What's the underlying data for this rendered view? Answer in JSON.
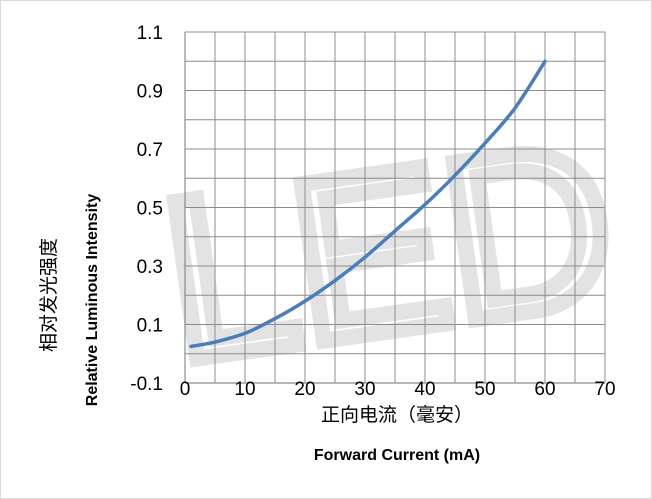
{
  "chart_data": {
    "type": "line",
    "title": "",
    "xlabel_cn": "正向电流（毫安）",
    "xlabel_en": "Forward Current (mA)",
    "ylabel_cn": "相对发光强度",
    "ylabel_en": "Relative Luminous Intensity",
    "xlim": [
      0,
      70
    ],
    "ylim": [
      -0.1,
      1.1
    ],
    "x_ticks": [
      "0",
      "10",
      "20",
      "30",
      "40",
      "50",
      "60",
      "70"
    ],
    "y_ticks": [
      "-0.1",
      "0.1",
      "0.3",
      "0.5",
      "0.7",
      "0.9",
      "1.1"
    ],
    "x_minor_grid_step": 5,
    "y_minor_grid_step": 0.1,
    "grid": true,
    "legend": "none",
    "series": [
      {
        "color": "#4a7ebb",
        "x": [
          1,
          5,
          10,
          15,
          20,
          25,
          30,
          35,
          40,
          45,
          50,
          55,
          60
        ],
        "y": [
          0.025,
          0.04,
          0.07,
          0.12,
          0.18,
          0.25,
          0.33,
          0.42,
          0.51,
          0.61,
          0.72,
          0.84,
          1.0
        ]
      }
    ],
    "watermark_text": "LED",
    "colors": {
      "line": "#4a7ebb",
      "grid": "#8c8c8c",
      "axis": "#8c8c8c",
      "text": "#000000"
    }
  }
}
